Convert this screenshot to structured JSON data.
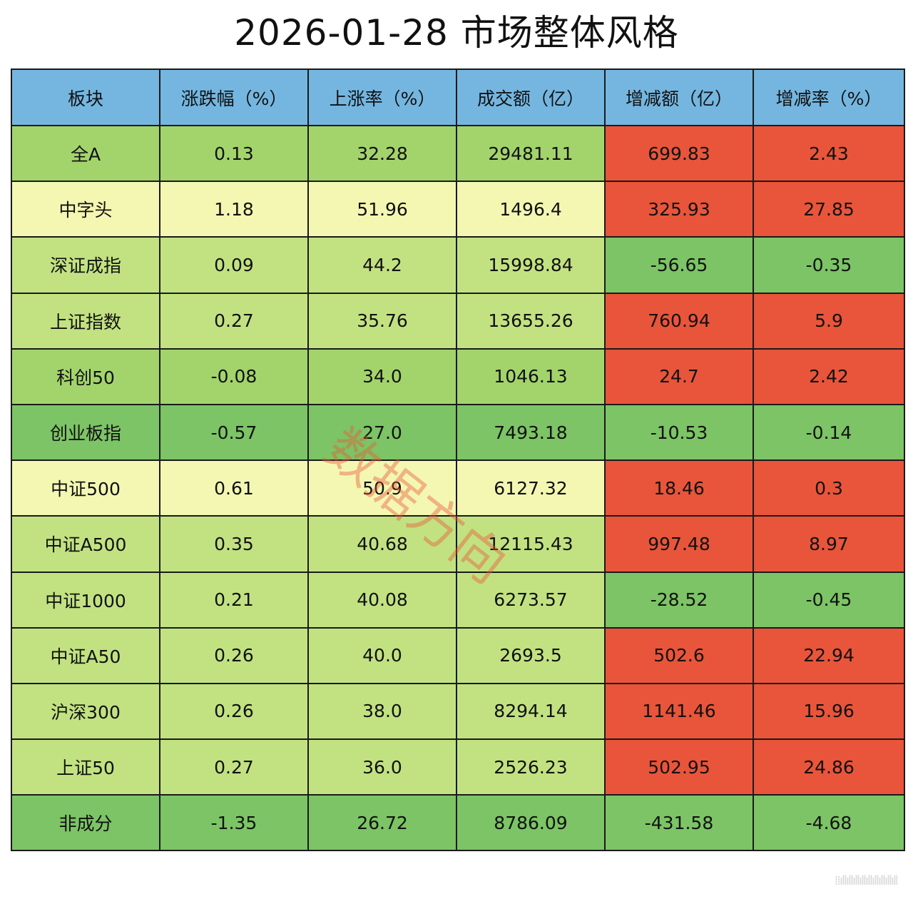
{
  "chart_data": {
    "type": "table",
    "title": "2026-01-28 市场整体风格",
    "columns": [
      "板块",
      "涨跌幅（%）",
      "上涨率（%）",
      "成交额（亿）",
      "增减额（亿）",
      "增减率（%）"
    ],
    "rows": [
      [
        "全A",
        "0.13",
        "32.28",
        "29481.11",
        "699.83",
        "2.43"
      ],
      [
        "中字头",
        "1.18",
        "51.96",
        "1496.4",
        "325.93",
        "27.85"
      ],
      [
        "深证成指",
        "0.09",
        "44.2",
        "15998.84",
        "-56.65",
        "-0.35"
      ],
      [
        "上证指数",
        "0.27",
        "35.76",
        "13655.26",
        "760.94",
        "5.9"
      ],
      [
        "科创50",
        "-0.08",
        "34.0",
        "1046.13",
        "24.7",
        "2.42"
      ],
      [
        "创业板指",
        "-0.57",
        "27.0",
        "7493.18",
        "-10.53",
        "-0.14"
      ],
      [
        "中证500",
        "0.61",
        "50.9",
        "6127.32",
        "18.46",
        "0.3"
      ],
      [
        "中证A500",
        "0.35",
        "40.68",
        "12115.43",
        "997.48",
        "8.97"
      ],
      [
        "中证1000",
        "0.21",
        "40.08",
        "6273.57",
        "-28.52",
        "-0.45"
      ],
      [
        "中证A50",
        "0.26",
        "40.0",
        "2693.5",
        "502.6",
        "22.94"
      ],
      [
        "沪深300",
        "0.26",
        "38.0",
        "8294.14",
        "1141.46",
        "15.96"
      ],
      [
        "上证50",
        "0.27",
        "36.0",
        "2526.23",
        "502.95",
        "24.86"
      ],
      [
        "非成分",
        "-1.35",
        "26.72",
        "8786.09",
        "-431.58",
        "-4.68"
      ]
    ],
    "row_colors": [
      "#a3d46c",
      "#f3f7b2",
      "#c2e282",
      "#c2e282",
      "#a3d46c",
      "#7cc465",
      "#f3f7b2",
      "#c2e282",
      "#c2e282",
      "#c2e282",
      "#c2e282",
      "#c2e282",
      "#7cc465"
    ],
    "change_colors": {
      "increase": "#e8553a",
      "decrease": "#7cc465"
    },
    "header_color": "#74b6e0"
  },
  "watermark": "数据方向",
  "footer_mark": "⁞⁞ıllıllıllıllıllıllıllıllıll"
}
